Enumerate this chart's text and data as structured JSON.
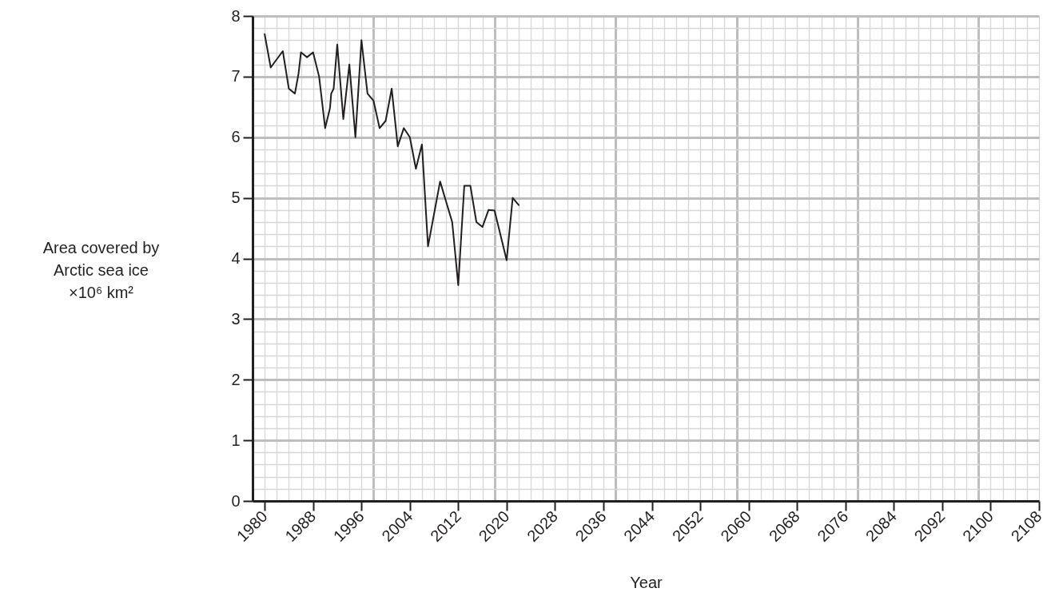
{
  "chart_data": {
    "type": "line",
    "xlabel": "Year",
    "ylabel": "Area covered by\nArctic sea ice\n×10⁶ km²",
    "x": [
      1980,
      1981,
      1983,
      1984,
      1985,
      1985.6,
      1986,
      1987,
      1988,
      1989,
      1990,
      1990.8,
      1991,
      1991.4,
      1992,
      1993,
      1994,
      1995,
      1996,
      1997,
      1998,
      1999,
      2000,
      2001,
      2002,
      2003,
      2004,
      2005,
      2006,
      2007,
      2009,
      2011,
      2012,
      2013,
      2014,
      2015,
      2016,
      2017,
      2018,
      2020,
      2021,
      2022
    ],
    "series": [
      {
        "color": "#231f20",
        "values": [
          7.7,
          7.15,
          7.42,
          6.8,
          6.72,
          7.05,
          7.4,
          7.32,
          7.4,
          7.0,
          6.15,
          6.48,
          6.72,
          6.8,
          7.53,
          6.3,
          7.2,
          6.0,
          7.6,
          6.72,
          6.6,
          6.15,
          6.27,
          6.8,
          5.85,
          6.15,
          6.0,
          5.48,
          5.88,
          4.2,
          5.27,
          4.6,
          3.56,
          5.2,
          5.2,
          4.6,
          4.52,
          4.8,
          4.79,
          3.97,
          5.0,
          4.88
        ]
      }
    ],
    "xlim": [
      1978,
      2108
    ],
    "xticks": [
      1980,
      1988,
      1996,
      2004,
      2012,
      2020,
      2028,
      2036,
      2044,
      2052,
      2060,
      2068,
      2076,
      2084,
      2092,
      2100,
      2108
    ],
    "ylim": [
      0,
      8
    ],
    "yticks": [
      0,
      1,
      2,
      3,
      4,
      5,
      6,
      7,
      8
    ],
    "grid": true,
    "marker": "none",
    "line_style": "solid"
  }
}
